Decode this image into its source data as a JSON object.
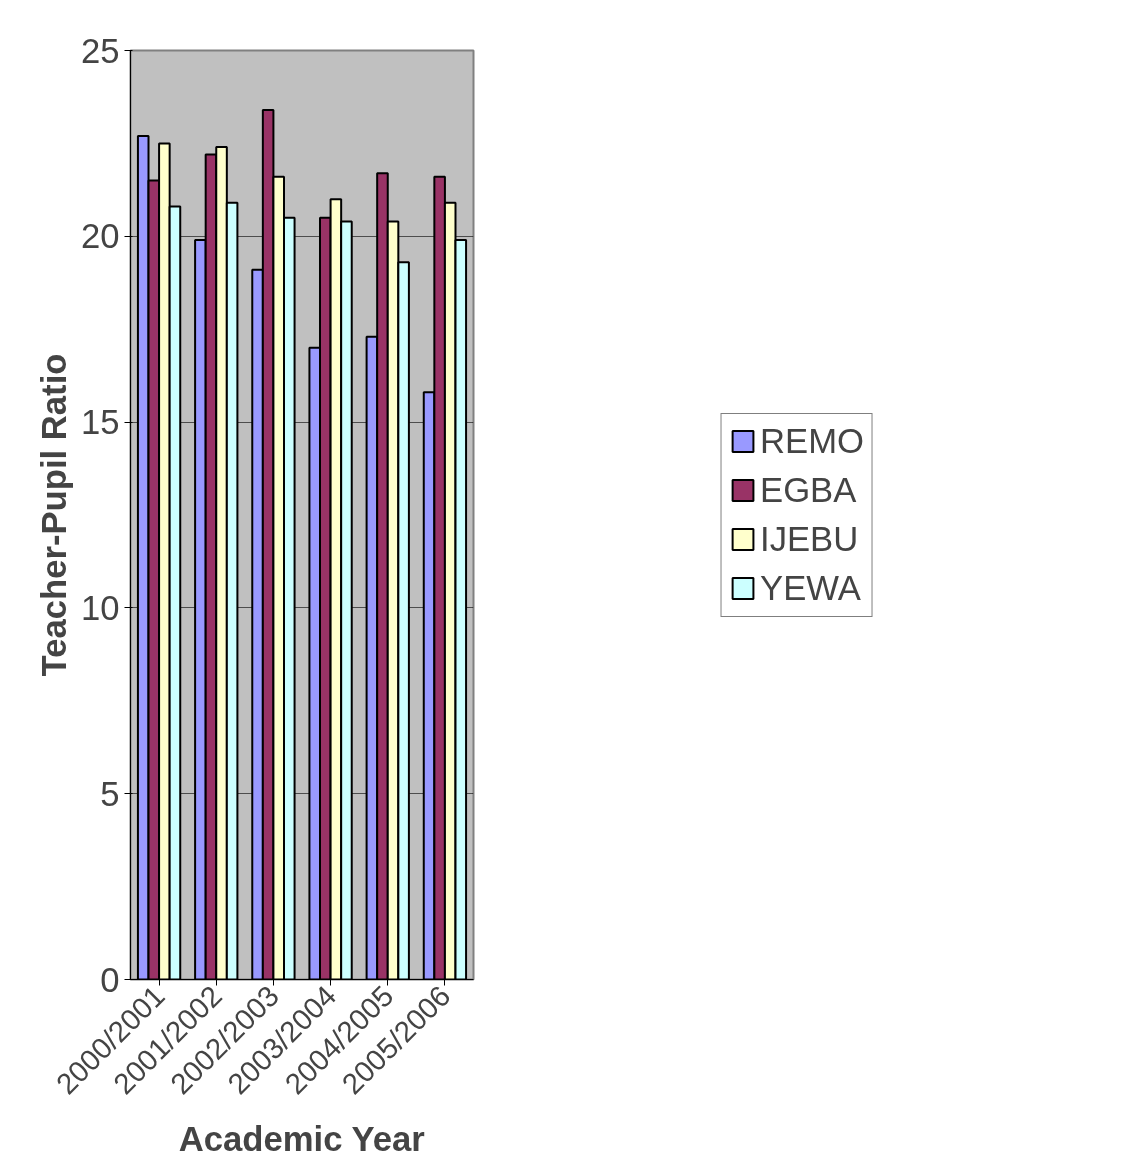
{
  "chart_data": {
    "type": "bar",
    "xlabel": "Academic Year",
    "ylabel": "Teacher-Pupil Ratio",
    "categories": [
      "2000/2001",
      "2001/2002",
      "2002/2003",
      "2003/2004",
      "2004/2005",
      "2005/2006"
    ],
    "series": [
      {
        "name": "REMO",
        "color": "#9999ff",
        "values": [
          22.7,
          19.9,
          19.1,
          17.0,
          17.3,
          15.8
        ]
      },
      {
        "name": "EGBA",
        "color": "#993366",
        "values": [
          21.5,
          22.2,
          23.4,
          20.5,
          21.7,
          21.6
        ]
      },
      {
        "name": "IJEBU",
        "color": "#ffffcc",
        "values": [
          22.5,
          22.4,
          21.6,
          21.0,
          20.4,
          20.9
        ]
      },
      {
        "name": "YEWA",
        "color": "#ccffff",
        "values": [
          20.8,
          20.9,
          20.5,
          20.4,
          19.3,
          19.9
        ]
      }
    ],
    "ylim": [
      0,
      25
    ],
    "yticks": [
      0,
      5,
      10,
      15,
      20,
      25
    ],
    "grid": "y",
    "legend": "right"
  }
}
